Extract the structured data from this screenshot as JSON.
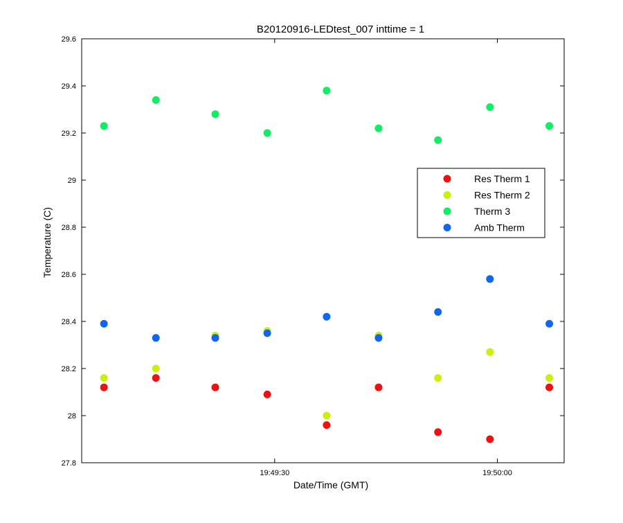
{
  "chart_data": {
    "type": "scatter",
    "title": "B20120916-LEDtest_007 inttime = 1",
    "xlabel": "Date/Time (GMT)",
    "ylabel": "Temperature (C)",
    "xlim": [
      "19:49:04",
      "19:50:09"
    ],
    "ylim": [
      27.8,
      29.6
    ],
    "yticks": [
      27.8,
      28,
      28.2,
      28.4,
      28.6,
      28.8,
      29,
      29.2,
      29.4,
      29.6
    ],
    "ytick_labels": [
      "27.8",
      "28",
      "28.2",
      "28.4",
      "28.6",
      "28.8",
      "29",
      "29.2",
      "29.4",
      "29.6"
    ],
    "xticks": [
      "19:49:30",
      "19:50:00"
    ],
    "xtick_labels": [
      "19:49:30",
      "19:50:00"
    ],
    "x": [
      "19:49:07",
      "19:49:14",
      "19:49:22",
      "19:49:29",
      "19:49:37",
      "19:49:44",
      "19:49:52",
      "19:49:59",
      "19:50:07"
    ],
    "legend_position": "right",
    "grid": false,
    "series": [
      {
        "name": "Res Therm 1",
        "color": "#ee1111",
        "values": [
          28.12,
          28.16,
          28.12,
          28.09,
          27.96,
          28.12,
          27.93,
          27.9,
          28.12
        ]
      },
      {
        "name": "Res Therm 2",
        "color": "#ccee11",
        "values": [
          28.16,
          28.2,
          28.34,
          28.36,
          28.0,
          28.34,
          28.16,
          28.27,
          28.16
        ]
      },
      {
        "name": "Therm 3",
        "color": "#11ee66",
        "values": [
          29.23,
          29.34,
          29.28,
          29.2,
          29.38,
          29.22,
          29.17,
          29.31,
          29.23
        ]
      },
      {
        "name": "Amb Therm",
        "color": "#1166ee",
        "values": [
          28.39,
          28.33,
          28.33,
          28.35,
          28.42,
          28.33,
          28.44,
          28.58,
          28.39
        ]
      }
    ]
  }
}
